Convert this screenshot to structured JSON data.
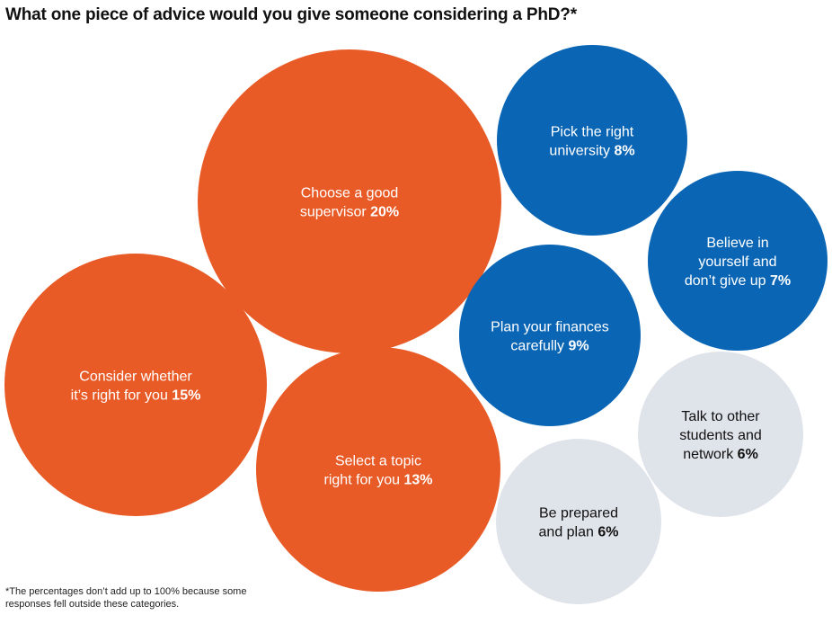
{
  "title": "What one piece of advice would you give someone considering a PhD?*",
  "footnote": "*The percentages don’t add up to 100% because some responses fell outside these categories.",
  "colors": {
    "orange": "#E85A26",
    "blue": "#0A66B5",
    "grey": "#DFE3EA",
    "light_text": "#ffffff",
    "dark_text": "#111111"
  },
  "chart_data": {
    "type": "bubble",
    "unit": "%",
    "items": [
      {
        "lines": [
          "Choose a good",
          "supervisor"
        ],
        "pct_label": "20%",
        "value": 20,
        "color_key": "orange"
      },
      {
        "lines": [
          "Consider whether",
          "it’s right for you"
        ],
        "pct_label": "15%",
        "value": 15,
        "color_key": "orange"
      },
      {
        "lines": [
          "Select a topic",
          "right for you"
        ],
        "pct_label": "13%",
        "value": 13,
        "color_key": "orange"
      },
      {
        "lines": [
          "Plan your finances",
          "carefully"
        ],
        "pct_label": "9%",
        "value": 9,
        "color_key": "blue"
      },
      {
        "lines": [
          "Pick the right",
          "university"
        ],
        "pct_label": "8%",
        "value": 8,
        "color_key": "blue"
      },
      {
        "lines": [
          "Believe in",
          "yourself and",
          "don’t give up"
        ],
        "pct_label": "7%",
        "value": 7,
        "color_key": "blue"
      },
      {
        "lines": [
          "Talk to other",
          "students and",
          "network"
        ],
        "pct_label": "6%",
        "value": 6,
        "color_key": "grey"
      },
      {
        "lines": [
          "Be prepared",
          "and plan"
        ],
        "pct_label": "6%",
        "value": 6,
        "color_key": "grey"
      }
    ]
  }
}
